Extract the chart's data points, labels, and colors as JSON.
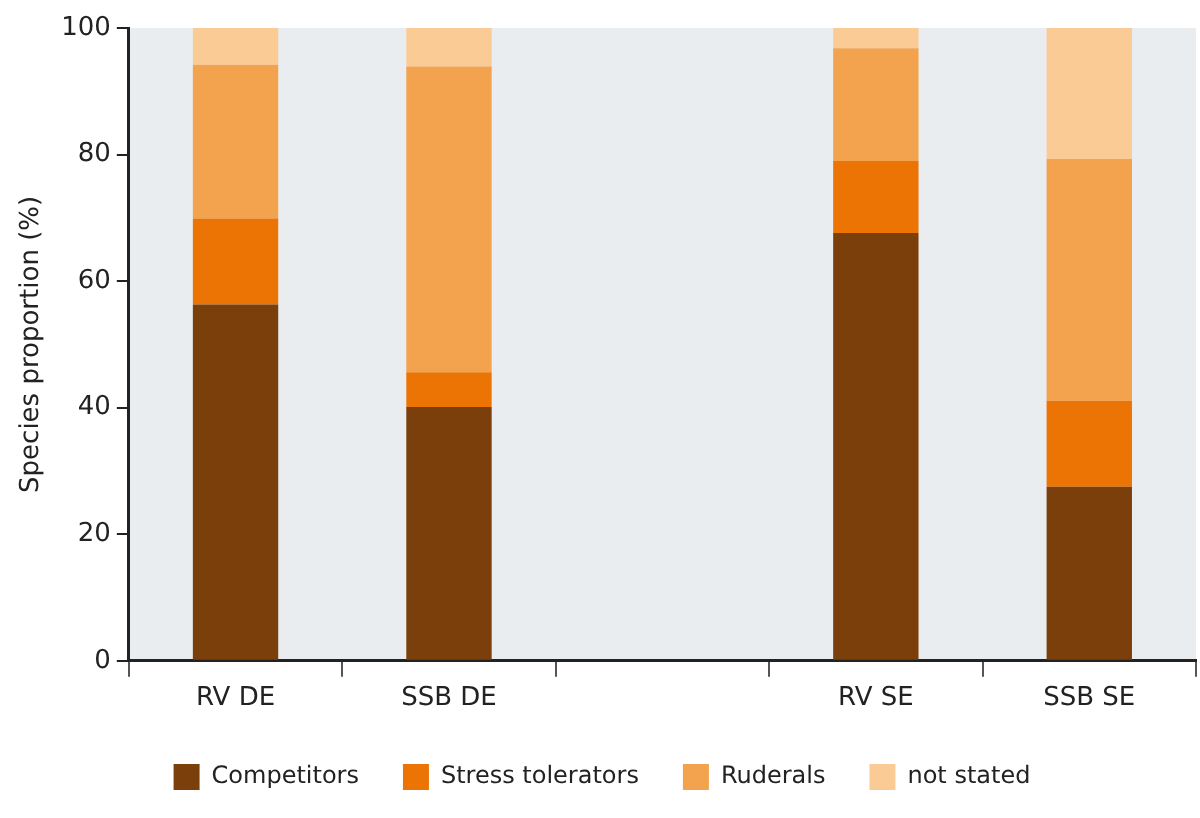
{
  "chart_data": {
    "type": "bar",
    "stacked": true,
    "ylabel": "Species proportion (%)",
    "categories": [
      "RV DE",
      "SSB DE",
      null,
      "RV SE",
      "SSB SE"
    ],
    "series": [
      {
        "name": "Competitors",
        "color": "#7b3f0c",
        "values": [
          56.3,
          40.1,
          null,
          67.6,
          27.5
        ]
      },
      {
        "name": "Stress tolerators",
        "color": "#ec7405",
        "values": [
          13.6,
          5.5,
          null,
          11.4,
          13.6
        ]
      },
      {
        "name": "Ruderals",
        "color": "#f3a24d",
        "values": [
          24.3,
          48.3,
          null,
          17.8,
          38.2
        ]
      },
      {
        "name": "not stated",
        "color": "#fbcb96",
        "values": [
          5.8,
          6.1,
          null,
          3.2,
          20.7
        ]
      }
    ],
    "ylim": [
      0,
      100
    ],
    "yticks": [
      0,
      20,
      40,
      60,
      80,
      100
    ],
    "grid": false,
    "legend": "bottom"
  }
}
